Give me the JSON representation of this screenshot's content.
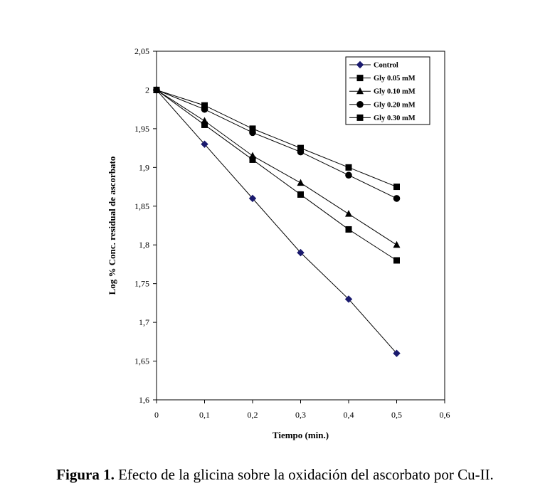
{
  "caption": {
    "label": "Figura 1.",
    "text": "Efecto de la glicina sobre la oxidación del ascorbato por Cu-II."
  },
  "chart_data": {
    "type": "line",
    "xlabel": "Tiempo (min.)",
    "ylabel": "Log % Conc. residual de ascorbato",
    "xlim": [
      0,
      0.6
    ],
    "ylim": [
      1.6,
      2.05
    ],
    "xticks": [
      "0",
      "0,1",
      "0,2",
      "0,3",
      "0,4",
      "0,5",
      "0,6"
    ],
    "yticks": [
      "1,6",
      "1,65",
      "1,7",
      "1,75",
      "1,8",
      "1,85",
      "1,9",
      "1,95",
      "2",
      "2,05"
    ],
    "grid": false,
    "legend_position": "top-right",
    "x": [
      0,
      0.1,
      0.2,
      0.3,
      0.4,
      0.5
    ],
    "series": [
      {
        "name": "Control",
        "marker": "diamond",
        "color": "#1a1a6e",
        "values": [
          2.0,
          1.93,
          1.86,
          1.79,
          1.73,
          1.66
        ]
      },
      {
        "name": "Gly 0.05 mM",
        "marker": "square",
        "color": "#000000",
        "values": [
          2.0,
          1.955,
          1.91,
          1.865,
          1.82,
          1.78
        ]
      },
      {
        "name": "Gly 0.10 mM",
        "marker": "triangle",
        "color": "#000000",
        "values": [
          2.0,
          1.96,
          1.915,
          1.88,
          1.84,
          1.8
        ]
      },
      {
        "name": "Gly 0.20 mM",
        "marker": "circle",
        "color": "#000000",
        "values": [
          2.0,
          1.975,
          1.945,
          1.92,
          1.89,
          1.86
        ]
      },
      {
        "name": "Gly 0.30 mM",
        "marker": "square",
        "color": "#000000",
        "values": [
          2.0,
          1.98,
          1.95,
          1.925,
          1.9,
          1.875
        ]
      }
    ]
  }
}
